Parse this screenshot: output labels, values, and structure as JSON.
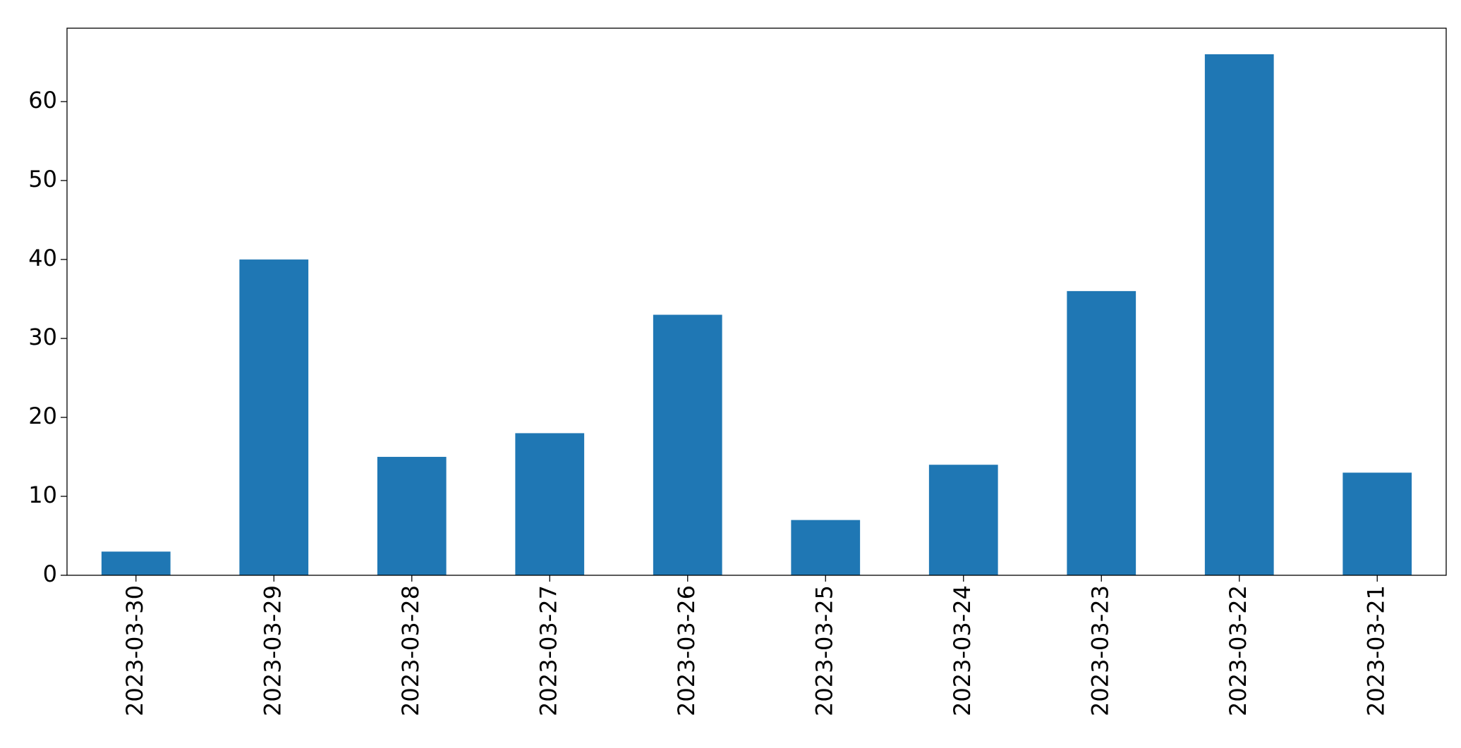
{
  "chart_data": {
    "type": "bar",
    "categories": [
      "2023-03-30",
      "2023-03-29",
      "2023-03-28",
      "2023-03-27",
      "2023-03-26",
      "2023-03-25",
      "2023-03-24",
      "2023-03-23",
      "2023-03-22",
      "2023-03-21"
    ],
    "values": [
      3,
      40,
      15,
      18,
      33,
      7,
      14,
      36,
      66,
      13
    ],
    "color": "#1f77b4",
    "ylim": [
      0,
      69.3
    ],
    "yticks": [
      0,
      10,
      20,
      30,
      40,
      50,
      60
    ],
    "grid": false
  }
}
